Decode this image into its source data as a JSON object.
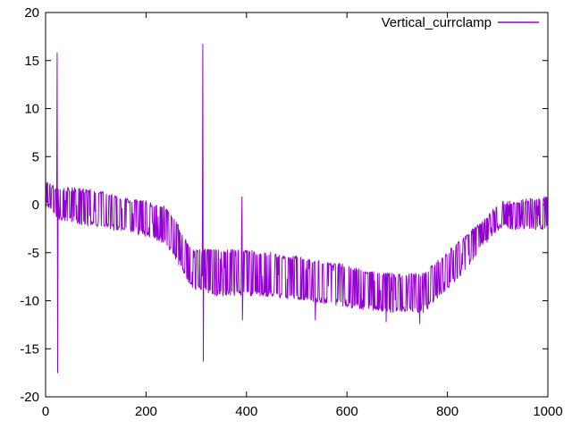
{
  "frame": {
    "background": "#ffffff",
    "border_color": "#000000",
    "text_color": "#000000"
  },
  "chart_data": {
    "type": "line",
    "title": "",
    "xlabel": "",
    "ylabel": "",
    "grid": false,
    "legend": {
      "label": "Vertical_currclamp",
      "position": "top-right"
    },
    "line_color": "#9400d3",
    "xlim": [
      0,
      1000
    ],
    "ylim": [
      -20,
      20
    ],
    "x_ticks": [
      "0",
      "200",
      "400",
      "600",
      "800",
      "1000"
    ],
    "x_tick_values": [
      0,
      200,
      400,
      600,
      800,
      1000
    ],
    "y_ticks": [
      "-20",
      "-15",
      "-10",
      "-5",
      "0",
      "5",
      "10",
      "15",
      "20"
    ],
    "y_tick_values": [
      -20,
      -15,
      -10,
      -5,
      0,
      5,
      10,
      15,
      20
    ],
    "n_points": 1001,
    "noise_style": "telegraph",
    "envelope": [
      {
        "x": 0,
        "high": 2.6,
        "low": -0.4
      },
      {
        "x": 15,
        "high": 2.0,
        "low": -1.0
      },
      {
        "x": 30,
        "high": 1.9,
        "low": -1.7
      },
      {
        "x": 60,
        "high": 1.8,
        "low": -2.0
      },
      {
        "x": 110,
        "high": 1.6,
        "low": -2.4
      },
      {
        "x": 150,
        "high": 0.8,
        "low": -2.8
      },
      {
        "x": 200,
        "high": 0.4,
        "low": -3.3
      },
      {
        "x": 240,
        "high": -0.2,
        "low": -4.2
      },
      {
        "x": 262,
        "high": -1.8,
        "low": -6.0
      },
      {
        "x": 282,
        "high": -3.8,
        "low": -8.0
      },
      {
        "x": 300,
        "high": -4.7,
        "low": -9.0
      },
      {
        "x": 340,
        "high": -4.5,
        "low": -9.5
      },
      {
        "x": 430,
        "high": -4.8,
        "low": -9.5
      },
      {
        "x": 520,
        "high": -5.5,
        "low": -10.0
      },
      {
        "x": 580,
        "high": -6.0,
        "low": -10.5
      },
      {
        "x": 640,
        "high": -6.8,
        "low": -11.0
      },
      {
        "x": 700,
        "high": -7.2,
        "low": -11.3
      },
      {
        "x": 755,
        "high": -7.0,
        "low": -11.3
      },
      {
        "x": 775,
        "high": -6.0,
        "low": -10.0
      },
      {
        "x": 800,
        "high": -4.8,
        "low": -8.8
      },
      {
        "x": 830,
        "high": -3.5,
        "low": -7.2
      },
      {
        "x": 860,
        "high": -2.0,
        "low": -5.2
      },
      {
        "x": 885,
        "high": -0.8,
        "low": -3.5
      },
      {
        "x": 905,
        "high": 0.3,
        "low": -2.6
      },
      {
        "x": 1000,
        "high": 0.9,
        "low": -2.6
      }
    ],
    "spikes": [
      {
        "x": 23,
        "high": 15.8,
        "low": -17.5
      },
      {
        "x": 313,
        "high": 16.7,
        "low": -16.3
      },
      {
        "x": 391,
        "high": 0.8,
        "low": -12.0
      }
    ],
    "dips": [
      {
        "x": 537,
        "value": -12.0
      },
      {
        "x": 678,
        "value": -12.2
      },
      {
        "x": 745,
        "value": -12.4
      }
    ]
  }
}
